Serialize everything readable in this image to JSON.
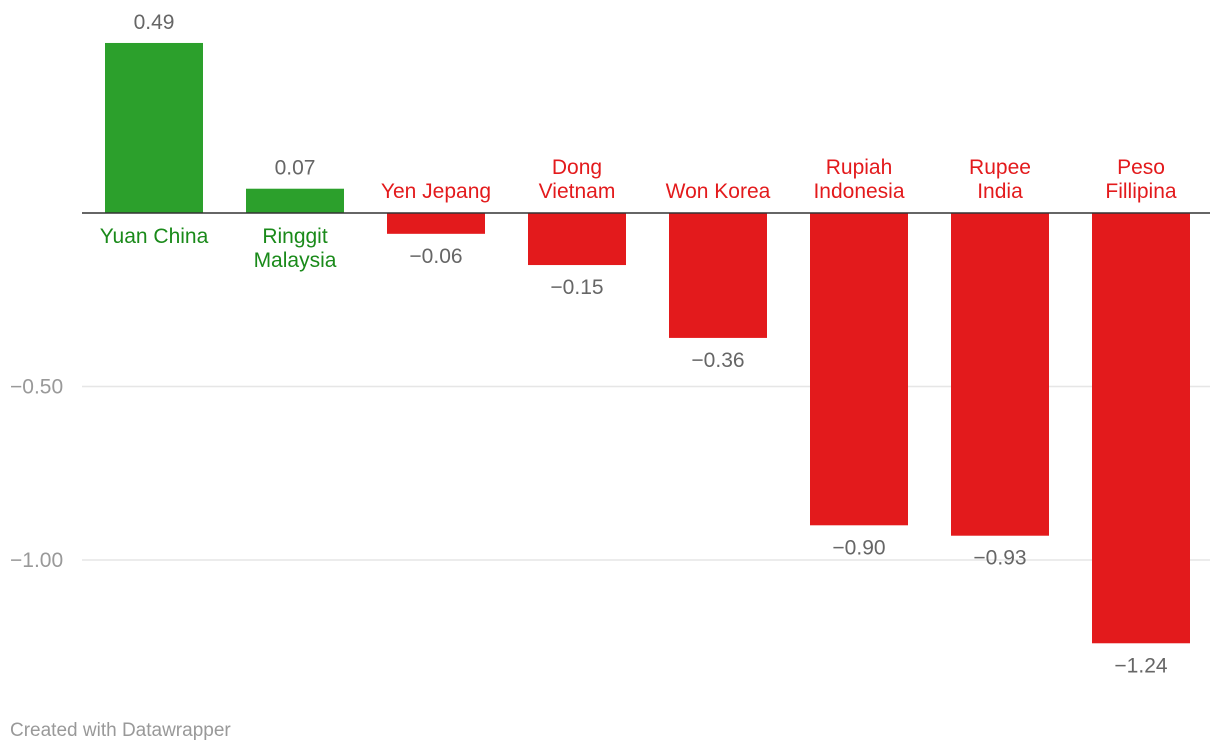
{
  "chart_data": {
    "type": "bar",
    "categories": [
      [
        "Yuan China"
      ],
      [
        "Ringgit",
        "Malaysia"
      ],
      [
        "Yen Jepang"
      ],
      [
        "Dong",
        "Vietnam"
      ],
      [
        "Won Korea"
      ],
      [
        "Rupiah",
        "Indonesia"
      ],
      [
        "Rupee",
        "India"
      ],
      [
        "Peso",
        "Fillipina"
      ]
    ],
    "values": [
      0.49,
      0.07,
      -0.06,
      -0.15,
      -0.36,
      -0.9,
      -0.93,
      -1.24
    ],
    "value_labels": [
      "0.49",
      "0.07",
      "−0.06",
      "−0.15",
      "−0.36",
      "−0.90",
      "−0.93",
      "−1.24"
    ],
    "yticks": [
      -0.5,
      -1.0
    ],
    "ytick_labels": [
      "−0.50",
      "−1.00"
    ],
    "ylim": [
      -1.3,
      0.55
    ],
    "grid": true,
    "colors": {
      "positive": "#2ca02c",
      "negative": "#e31a1c",
      "positive_text": "#1a8a1a",
      "negative_text": "#e31a1c",
      "value_text": "#666666",
      "axis_text": "#999999",
      "grid": "#e6e6e6",
      "baseline": "#333333"
    }
  },
  "footer": "Created with Datawrapper"
}
